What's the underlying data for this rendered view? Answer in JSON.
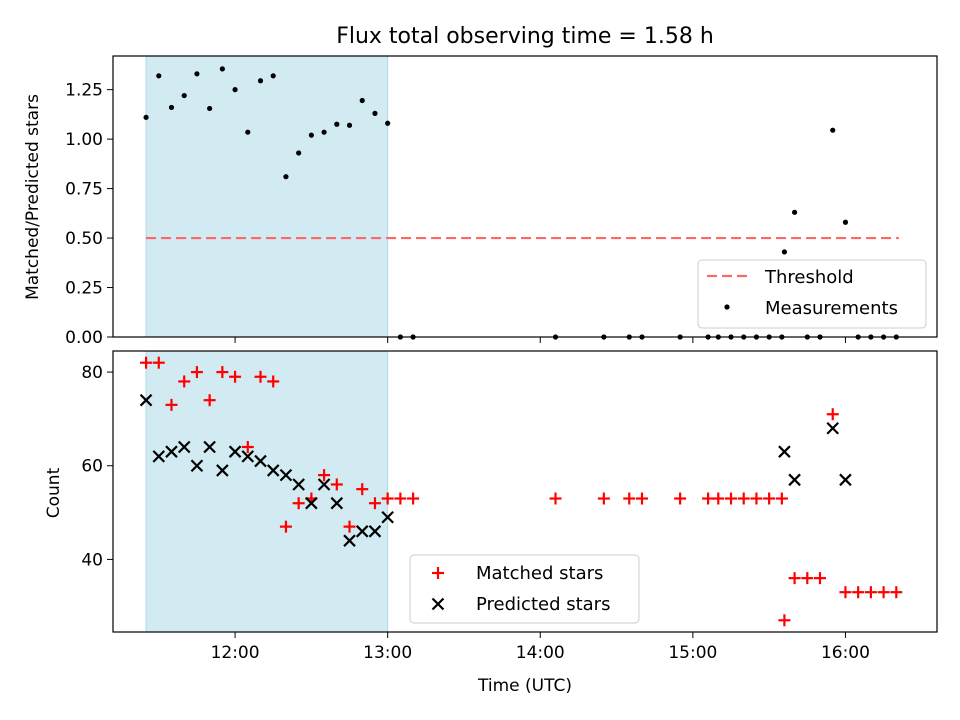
{
  "colors": {
    "band": "#add8e6",
    "threshold": "#ff6666",
    "matched": "#ff0000",
    "predicted": "#000000",
    "measurement": "#000000"
  },
  "chart_data": [
    {
      "type": "scatter",
      "title": "Flux total observing time = 1.58 h",
      "xlabel": "",
      "ylabel": "Matched/Predicted stars",
      "xlim": [
        11.2,
        16.6
      ],
      "ylim": [
        0.0,
        1.42
      ],
      "yticks": [
        0.0,
        0.25,
        0.5,
        0.75,
        1.0,
        1.25
      ],
      "ytick_labels": [
        "0.00",
        "0.25",
        "0.50",
        "0.75",
        "1.00",
        "1.25"
      ],
      "shaded_band": [
        11.4167,
        13.0
      ],
      "threshold": {
        "name": "Threshold",
        "y": 0.5,
        "x": [
          11.4167,
          16.35
        ]
      },
      "legend": {
        "position": "lower right",
        "entries": [
          "Threshold",
          "Measurements"
        ]
      },
      "series": [
        {
          "name": "Measurements",
          "x": [
            11.4167,
            11.5,
            11.5833,
            11.6667,
            11.75,
            11.8333,
            11.9167,
            12.0,
            12.0833,
            12.1667,
            12.25,
            12.3333,
            12.4167,
            12.5,
            12.5833,
            12.6667,
            12.75,
            12.8333,
            12.9167,
            13.0,
            13.0833,
            13.1667,
            14.1,
            14.4167,
            14.5833,
            14.6667,
            14.9167,
            15.1,
            15.1667,
            15.25,
            15.3333,
            15.4167,
            15.5,
            15.5833,
            15.6,
            15.6667,
            15.75,
            15.8333,
            15.9167,
            16.0,
            16.0833,
            16.1667,
            16.25,
            16.3333
          ],
          "y": [
            1.11,
            1.32,
            1.16,
            1.22,
            1.33,
            1.155,
            1.355,
            1.25,
            1.035,
            1.295,
            1.32,
            0.81,
            0.93,
            1.02,
            1.035,
            1.075,
            1.07,
            1.195,
            1.13,
            1.08,
            0.0,
            0.0,
            0.0,
            0.0,
            0.0,
            0.0,
            0.0,
            0.0,
            0.0,
            0.0,
            0.0,
            0.0,
            0.0,
            0.0,
            0.43,
            0.63,
            0.0,
            0.0,
            1.045,
            0.58,
            0.0,
            0.0,
            0.0,
            0.0
          ]
        }
      ]
    },
    {
      "type": "scatter",
      "title": "",
      "xlabel": "Time (UTC)",
      "ylabel": "Count",
      "xlim": [
        11.2,
        16.6
      ],
      "ylim": [
        24.5,
        84.5
      ],
      "xticks": [
        12,
        13,
        14,
        15,
        16
      ],
      "xtick_labels": [
        "12:00",
        "13:00",
        "14:00",
        "15:00",
        "16:00"
      ],
      "yticks": [
        40,
        60,
        80
      ],
      "ytick_labels": [
        "40",
        "60",
        "80"
      ],
      "shaded_band": [
        11.4167,
        13.0
      ],
      "legend": {
        "position": "lower center",
        "entries": [
          "Matched stars",
          "Predicted stars"
        ]
      },
      "series": [
        {
          "name": "Matched stars",
          "marker": "+",
          "x": [
            11.4167,
            11.5,
            11.5833,
            11.6667,
            11.75,
            11.8333,
            11.9167,
            12.0,
            12.0833,
            12.1667,
            12.25,
            12.3333,
            12.4167,
            12.5,
            12.5833,
            12.6667,
            12.75,
            12.8333,
            12.9167,
            13.0,
            13.0833,
            13.1667,
            14.1,
            14.4167,
            14.5833,
            14.6667,
            14.9167,
            15.1,
            15.1667,
            15.25,
            15.3333,
            15.4167,
            15.5,
            15.5833,
            15.6,
            15.6667,
            15.75,
            15.8333,
            15.9167,
            16.0,
            16.0833,
            16.1667,
            16.25,
            16.3333
          ],
          "y": [
            82,
            82,
            73,
            78,
            80,
            74,
            80,
            79,
            64,
            79,
            78,
            47,
            52,
            53,
            58,
            56,
            47,
            55,
            52,
            53,
            53,
            53,
            53,
            53,
            53,
            53,
            53,
            53,
            53,
            53,
            53,
            53,
            53,
            53,
            27,
            36,
            36,
            36,
            71,
            33,
            33,
            33,
            33,
            33
          ]
        },
        {
          "name": "Predicted stars",
          "marker": "x",
          "x": [
            11.4167,
            11.5,
            11.5833,
            11.6667,
            11.75,
            11.8333,
            11.9167,
            12.0,
            12.0833,
            12.1667,
            12.25,
            12.3333,
            12.4167,
            12.5,
            12.5833,
            12.6667,
            12.75,
            12.8333,
            12.9167,
            13.0,
            15.6,
            15.6667,
            15.9167,
            16.0
          ],
          "y": [
            74,
            62,
            63,
            64,
            60,
            64,
            59,
            63,
            62,
            61,
            59,
            58,
            56,
            52,
            56,
            52,
            44,
            46,
            46,
            49,
            63,
            57,
            68,
            57
          ]
        }
      ]
    }
  ]
}
